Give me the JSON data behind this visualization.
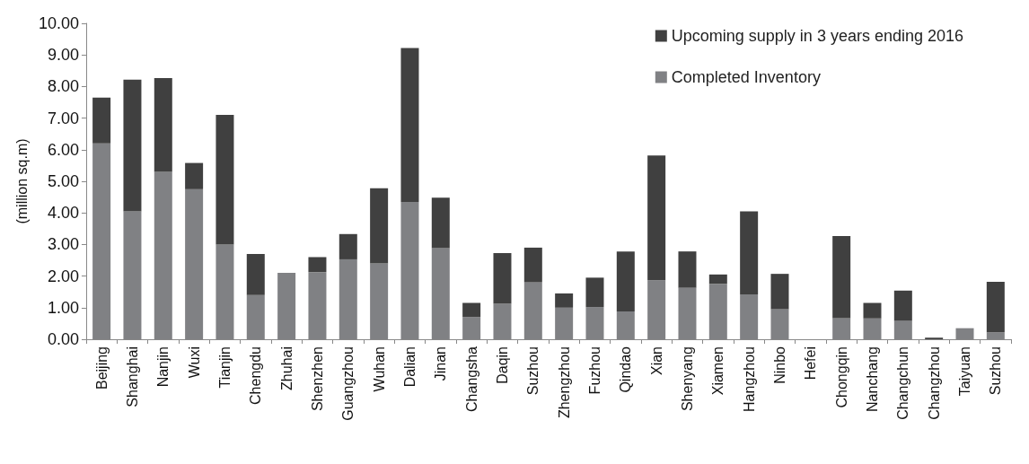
{
  "chart_data": {
    "type": "bar",
    "stacked": true,
    "ylabel": "(million sq.m)",
    "categories": [
      "Beijing",
      "Shanghai",
      "Nanjin",
      "Wuxi",
      "Tianjin",
      "Chengdu",
      "Zhuhai",
      "Shenzhen",
      "Guangzhou",
      "Wuhan",
      "Dalian",
      "Jinan",
      "Changsha",
      "Daqin",
      "Suzhou",
      "Zhengzhou",
      "Fuzhou",
      "Qindao",
      "Xian",
      "Shenyang",
      "Xiamen",
      "Hangzhou",
      "Ninbo",
      "Hefei",
      "Chongqin",
      "Nanchang",
      "Changchun",
      "Changzhou",
      "Taiyuan",
      "Suzhou"
    ],
    "series": [
      {
        "name": "Completed Inventory",
        "color": "#808184",
        "values": [
          6.2,
          4.05,
          5.3,
          4.75,
          3.0,
          1.4,
          2.1,
          2.12,
          2.53,
          2.4,
          4.35,
          2.88,
          0.7,
          1.12,
          1.8,
          1.0,
          1.02,
          0.88,
          1.87,
          1.63,
          1.75,
          1.42,
          0.95,
          0,
          0.67,
          0.66,
          0.58,
          0,
          0.35,
          0.22
        ]
      },
      {
        "name": "Upcoming supply in 3 years ending 2016",
        "color": "#404040",
        "values": [
          1.45,
          4.17,
          2.97,
          0.83,
          4.1,
          1.3,
          0,
          0.48,
          0.8,
          2.38,
          4.87,
          1.6,
          0.45,
          1.61,
          1.1,
          0.45,
          0.93,
          1.9,
          3.95,
          1.15,
          0.3,
          2.63,
          1.12,
          0,
          2.6,
          0.49,
          0.96,
          0.05,
          0,
          1.6
        ]
      }
    ],
    "ylim": [
      0,
      10
    ],
    "yticks": [
      {
        "value": 0,
        "label": "0.00"
      },
      {
        "value": 1,
        "label": "1.00"
      },
      {
        "value": 2,
        "label": "2.00"
      },
      {
        "value": 3,
        "label": "3.00"
      },
      {
        "value": 4,
        "label": "4.00"
      },
      {
        "value": 5,
        "label": "5.00"
      },
      {
        "value": 6,
        "label": "6.00"
      },
      {
        "value": 7,
        "label": "7.00"
      },
      {
        "value": 8,
        "label": "8.00"
      },
      {
        "value": 9,
        "label": "9.00"
      },
      {
        "value": 10,
        "label": "10.00"
      }
    ],
    "grid": false,
    "legend": "top right"
  }
}
